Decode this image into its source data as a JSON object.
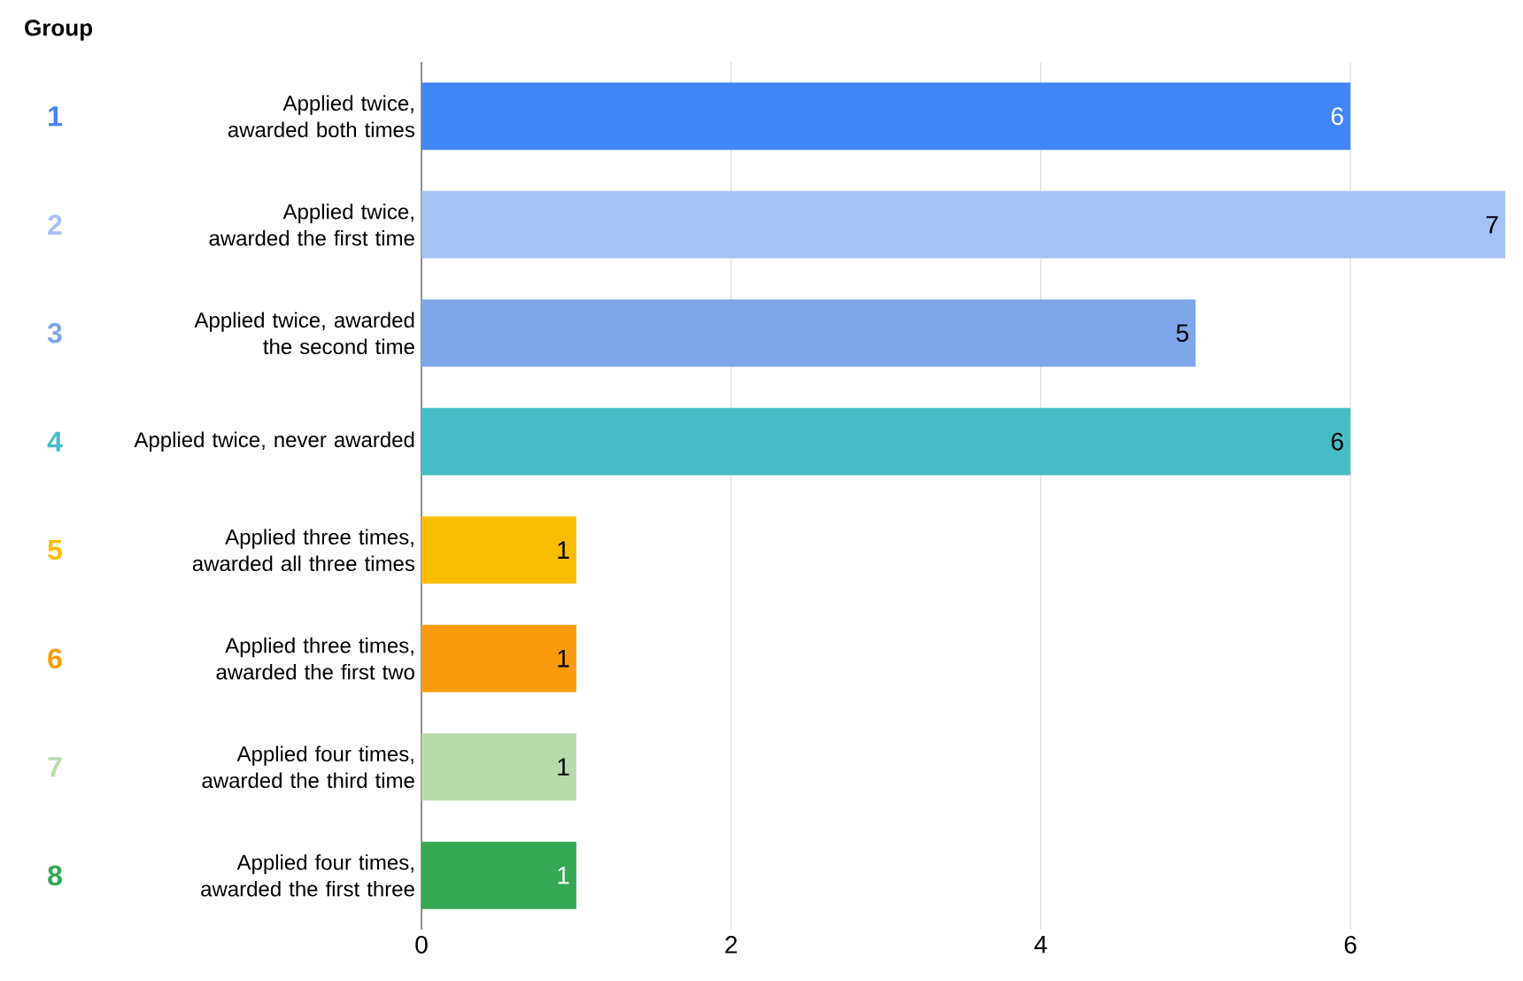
{
  "chart_data": {
    "type": "bar",
    "orientation": "horizontal",
    "categories": [
      "Applied twice, awarded both times",
      "Applied twice, awarded the first time",
      "Applied twice, awarded the second time",
      "Applied twice, never awarded",
      "Applied three times, awarded all three times",
      "Applied three times, awarded the first two",
      "Applied four times, awarded the third time",
      "Applied four times, awarded the first three"
    ],
    "values": [
      6,
      7,
      5,
      6,
      1,
      1,
      1,
      1
    ],
    "colors": [
      "#4285f4",
      "#a4c2f4",
      "#7ea6e8",
      "#46bdc6",
      "#fbbc04",
      "#fa9b0d",
      "#b7dbaa",
      "#34a853"
    ],
    "xlim": [
      0,
      7
    ],
    "xticks": [
      0,
      2,
      4,
      6
    ],
    "grid": "x",
    "data_labels": true,
    "annotations": [
      "Group",
      "1",
      "2",
      "3",
      "4",
      "5",
      "6",
      "7",
      "8"
    ]
  }
}
